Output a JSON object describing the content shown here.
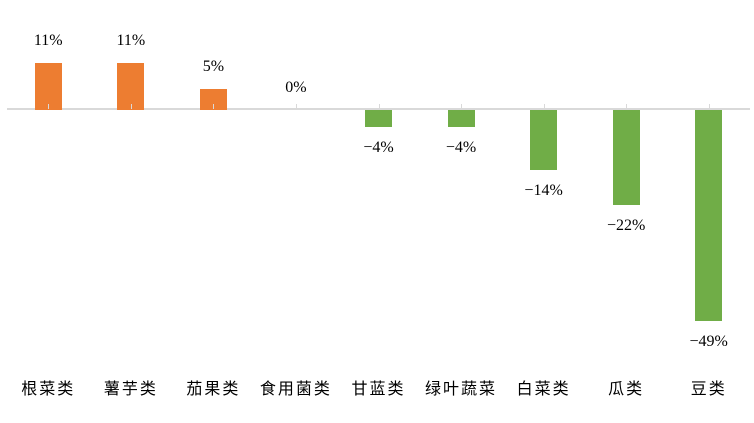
{
  "colors": {
    "positive_bar": "#ED7D31",
    "negative_bar": "#70AD47",
    "axis": "#D9D9D9",
    "label_text": "#000000",
    "background": "#FFFFFF"
  },
  "chart_data": {
    "type": "bar",
    "title": "",
    "xlabel": "",
    "ylabel": "",
    "unit": "%",
    "categories": [
      "根菜类",
      "薯芋类",
      "茄果类",
      "食用菌类",
      "甘蓝类",
      "绿叶蔬菜",
      "白菜类",
      "瓜类",
      "豆类"
    ],
    "values": [
      11,
      11,
      5,
      0,
      -4,
      -4,
      -14,
      -22,
      -49
    ],
    "value_labels": [
      "11%",
      "11%",
      "5%",
      "0%",
      "−4%",
      "−4%",
      "−14%",
      "−22%",
      "−49%"
    ],
    "ylim": [
      -55,
      15
    ],
    "grid": false,
    "legend": null,
    "y_axis_visible": false,
    "baseline_at_zero": true,
    "data_label_position": "outside-end"
  }
}
